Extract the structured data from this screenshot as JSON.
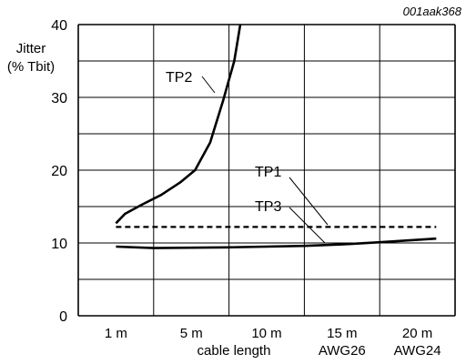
{
  "figure_id": "001aak368",
  "chart_data": {
    "type": "line",
    "ylabel_line1": "Jitter",
    "ylabel_line2": "(% Tbit)",
    "xlabel": "cable length",
    "x_categories": [
      "1 m",
      "5 m",
      "10 m",
      "15 m",
      "20 m"
    ],
    "x_sublabels": [
      "",
      "",
      "",
      "AWG26",
      "AWG24"
    ],
    "ylim": [
      0,
      40
    ],
    "y_ticks": [
      0,
      10,
      20,
      30,
      40
    ],
    "grid": true,
    "x_domain": [
      0,
      5
    ],
    "series": [
      {
        "name": "TP2",
        "style": "solid",
        "points": [
          [
            0.5,
            12.7
          ],
          [
            0.62,
            14.0
          ],
          [
            0.85,
            15.3
          ],
          [
            1.1,
            16.6
          ],
          [
            1.35,
            18.3
          ],
          [
            1.55,
            20.0
          ],
          [
            1.75,
            23.8
          ],
          [
            1.92,
            29.5
          ],
          [
            2.07,
            35.0
          ],
          [
            2.15,
            40.0
          ]
        ]
      },
      {
        "name": "TP1",
        "style": "dashed",
        "points": [
          [
            0.5,
            12.2
          ],
          [
            4.75,
            12.2
          ]
        ]
      },
      {
        "name": "TP3",
        "style": "solid",
        "points": [
          [
            0.5,
            9.5
          ],
          [
            1.0,
            9.3
          ],
          [
            2.0,
            9.4
          ],
          [
            3.0,
            9.6
          ],
          [
            3.5,
            9.8
          ],
          [
            4.0,
            10.1
          ],
          [
            4.75,
            10.6
          ]
        ]
      }
    ],
    "annotations": [
      {
        "text": "TP2",
        "series": "TP2"
      },
      {
        "text": "TP1",
        "series": "TP1"
      },
      {
        "text": "TP3",
        "series": "TP3"
      }
    ]
  }
}
